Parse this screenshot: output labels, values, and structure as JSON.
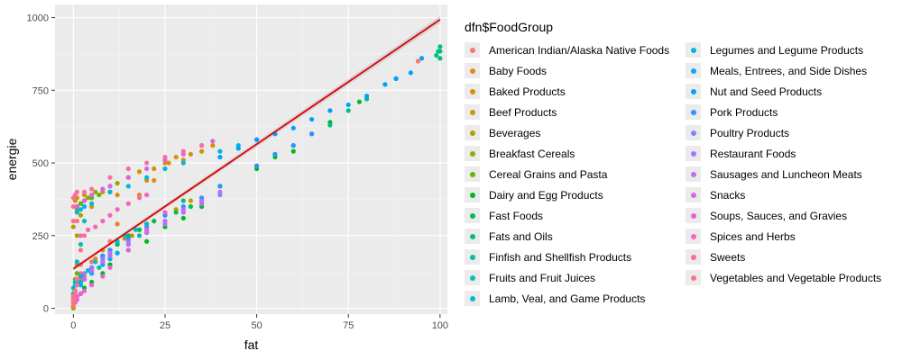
{
  "chart_data": {
    "type": "scatter",
    "xlabel": "fat",
    "ylabel": "energie",
    "xlim": [
      -5,
      102
    ],
    "ylim": [
      -20,
      1045
    ],
    "x_ticks": [
      0,
      25,
      50,
      75,
      100
    ],
    "y_ticks": [
      0,
      250,
      500,
      750,
      1000
    ],
    "x_tick_labels": [
      "0",
      "25",
      "50",
      "75",
      "100"
    ],
    "y_tick_labels": [
      "0",
      "250",
      "500",
      "750",
      "1000"
    ],
    "grid": true,
    "legend": {
      "title": "dfn$FoodGroup",
      "placement": "right"
    },
    "series": [
      {
        "name": "American Indian/Alaska Native Foods",
        "color": "#f8766d",
        "points": [
          [
            0.5,
            30
          ],
          [
            2,
            120
          ],
          [
            5,
            160
          ],
          [
            10,
            230
          ],
          [
            88,
            790
          ],
          [
            94,
            850
          ]
        ]
      },
      {
        "name": "Baby Foods",
        "color": "#e7861b",
        "points": [
          [
            0.5,
            60
          ],
          [
            1,
            80
          ],
          [
            2,
            95
          ],
          [
            3,
            110
          ],
          [
            4,
            130
          ],
          [
            6,
            170
          ],
          [
            8,
            200
          ],
          [
            12,
            290
          ],
          [
            18,
            390
          ],
          [
            22,
            440
          ],
          [
            26,
            500
          ]
        ]
      },
      {
        "name": "Baked Products",
        "color": "#d89000",
        "points": [
          [
            0.5,
            370
          ],
          [
            1,
            380
          ],
          [
            3,
            390
          ],
          [
            5,
            350
          ],
          [
            8,
            400
          ],
          [
            10,
            420
          ],
          [
            12,
            390
          ],
          [
            15,
            450
          ],
          [
            18,
            470
          ],
          [
            20,
            440
          ],
          [
            22,
            480
          ],
          [
            25,
            500
          ],
          [
            28,
            520
          ],
          [
            30,
            510
          ],
          [
            32,
            530
          ],
          [
            35,
            540
          ],
          [
            38,
            560
          ]
        ]
      },
      {
        "name": "Beef Products",
        "color": "#c49a00",
        "points": [
          [
            2,
            110
          ],
          [
            4,
            130
          ],
          [
            6,
            160
          ],
          [
            8,
            180
          ],
          [
            10,
            200
          ],
          [
            12,
            220
          ],
          [
            14,
            240
          ],
          [
            16,
            250
          ],
          [
            18,
            270
          ],
          [
            20,
            290
          ],
          [
            22,
            300
          ],
          [
            25,
            320
          ],
          [
            28,
            340
          ],
          [
            32,
            370
          ]
        ]
      },
      {
        "name": "Beverages",
        "color": "#aca300",
        "points": [
          [
            0,
            0
          ],
          [
            0,
            5
          ],
          [
            0,
            20
          ],
          [
            0,
            40
          ],
          [
            0.5,
            60
          ],
          [
            0.5,
            90
          ],
          [
            1,
            150
          ],
          [
            0,
            280
          ],
          [
            2,
            320
          ],
          [
            5,
            380
          ],
          [
            1,
            250
          ]
        ]
      },
      {
        "name": "Breakfast Cereals",
        "color": "#8fab00",
        "points": [
          [
            1,
            350
          ],
          [
            2,
            360
          ],
          [
            3,
            370
          ],
          [
            4,
            380
          ],
          [
            5,
            390
          ],
          [
            6,
            400
          ],
          [
            8,
            410
          ],
          [
            10,
            420
          ],
          [
            12,
            430
          ],
          [
            15,
            450
          ]
        ]
      },
      {
        "name": "Cereal Grains and Pasta",
        "color": "#68b300",
        "points": [
          [
            0.5,
            100
          ],
          [
            1,
            120
          ],
          [
            1,
            340
          ],
          [
            2,
            360
          ],
          [
            3,
            370
          ],
          [
            5,
            380
          ],
          [
            7,
            390
          ],
          [
            10,
            400
          ]
        ]
      },
      {
        "name": "Dairy and Egg Products",
        "color": "#00b81f",
        "points": [
          [
            0.5,
            30
          ],
          [
            2,
            50
          ],
          [
            3,
            70
          ],
          [
            5,
            90
          ],
          [
            8,
            120
          ],
          [
            10,
            150
          ],
          [
            15,
            200
          ],
          [
            20,
            230
          ],
          [
            25,
            280
          ],
          [
            30,
            310
          ],
          [
            35,
            350
          ],
          [
            50,
            480
          ],
          [
            55,
            520
          ],
          [
            60,
            540
          ],
          [
            70,
            640
          ],
          [
            78,
            710
          ]
        ]
      },
      {
        "name": "Fast Foods",
        "color": "#00bc55",
        "points": [
          [
            5,
            140
          ],
          [
            8,
            180
          ],
          [
            10,
            200
          ],
          [
            12,
            220
          ],
          [
            15,
            250
          ],
          [
            18,
            270
          ],
          [
            20,
            290
          ],
          [
            22,
            300
          ],
          [
            25,
            320
          ],
          [
            28,
            330
          ],
          [
            30,
            340
          ],
          [
            32,
            350
          ],
          [
            35,
            370
          ]
        ]
      },
      {
        "name": "Fats and Oils",
        "color": "#00c080",
        "points": [
          [
            30,
            370
          ],
          [
            40,
            420
          ],
          [
            50,
            490
          ],
          [
            55,
            530
          ],
          [
            60,
            560
          ],
          [
            65,
            600
          ],
          [
            70,
            630
          ],
          [
            75,
            680
          ],
          [
            80,
            720
          ],
          [
            99,
            870
          ],
          [
            99.5,
            884
          ],
          [
            100,
            900
          ],
          [
            100,
            884
          ],
          [
            100,
            860
          ]
        ]
      },
      {
        "name": "Finfish and Shellfish Products",
        "color": "#00c0a0",
        "points": [
          [
            0.5,
            60
          ],
          [
            1,
            80
          ],
          [
            2,
            90
          ],
          [
            3,
            100
          ],
          [
            5,
            120
          ],
          [
            7,
            140
          ],
          [
            10,
            170
          ],
          [
            12,
            190
          ],
          [
            15,
            220
          ],
          [
            18,
            250
          ],
          [
            20,
            270
          ]
        ]
      },
      {
        "name": "Fruits and Fruit Juices",
        "color": "#00bfbb",
        "points": [
          [
            0,
            20
          ],
          [
            0,
            30
          ],
          [
            0,
            50
          ],
          [
            0,
            70
          ],
          [
            0.5,
            40
          ],
          [
            0.5,
            90
          ],
          [
            1,
            100
          ],
          [
            1,
            160
          ],
          [
            2,
            220
          ],
          [
            3,
            300
          ],
          [
            15,
            200
          ]
        ]
      },
      {
        "name": "Lamb, Veal, and Game Products",
        "color": "#00bcd2",
        "points": [
          [
            2,
            110
          ],
          [
            4,
            130
          ],
          [
            6,
            160
          ],
          [
            8,
            180
          ],
          [
            10,
            200
          ],
          [
            12,
            230
          ],
          [
            14,
            250
          ],
          [
            17,
            270
          ],
          [
            20,
            290
          ],
          [
            25,
            320
          ]
        ]
      },
      {
        "name": "Legumes and Legume Products",
        "color": "#00b5e5",
        "points": [
          [
            0.5,
            80
          ],
          [
            1,
            90
          ],
          [
            1,
            330
          ],
          [
            2,
            340
          ],
          [
            3,
            350
          ],
          [
            5,
            360
          ],
          [
            10,
            400
          ],
          [
            15,
            420
          ],
          [
            20,
            450
          ],
          [
            25,
            480
          ],
          [
            30,
            500
          ],
          [
            40,
            540
          ],
          [
            45,
            560
          ],
          [
            50,
            580
          ]
        ]
      },
      {
        "name": "Meals, Entrees, and Side Dishes",
        "color": "#00acf5",
        "points": [
          [
            2,
            80
          ],
          [
            3,
            100
          ],
          [
            5,
            120
          ],
          [
            8,
            150
          ],
          [
            10,
            170
          ],
          [
            12,
            190
          ],
          [
            15,
            220
          ]
        ]
      },
      {
        "name": "Nut and Seed Products",
        "color": "#00a0ff",
        "points": [
          [
            40,
            520
          ],
          [
            45,
            550
          ],
          [
            50,
            580
          ],
          [
            55,
            600
          ],
          [
            60,
            620
          ],
          [
            65,
            650
          ],
          [
            70,
            680
          ],
          [
            75,
            700
          ],
          [
            80,
            730
          ],
          [
            85,
            770
          ],
          [
            88,
            790
          ],
          [
            92,
            810
          ],
          [
            95,
            860
          ]
        ]
      },
      {
        "name": "Pork Products",
        "color": "#2c92ff",
        "points": [
          [
            2,
            110
          ],
          [
            5,
            140
          ],
          [
            8,
            180
          ],
          [
            10,
            200
          ],
          [
            15,
            240
          ],
          [
            20,
            280
          ],
          [
            25,
            320
          ],
          [
            30,
            350
          ],
          [
            35,
            380
          ],
          [
            40,
            420
          ],
          [
            50,
            490
          ],
          [
            55,
            530
          ],
          [
            60,
            560
          ],
          [
            65,
            600
          ]
        ]
      },
      {
        "name": "Poultry Products",
        "color": "#7f83ff",
        "points": [
          [
            1,
            100
          ],
          [
            3,
            120
          ],
          [
            5,
            140
          ],
          [
            8,
            170
          ],
          [
            10,
            190
          ],
          [
            15,
            230
          ],
          [
            20,
            270
          ],
          [
            25,
            300
          ],
          [
            30,
            330
          ],
          [
            35,
            360
          ],
          [
            40,
            390
          ]
        ]
      },
      {
        "name": "Restaurant Foods",
        "color": "#a676ff",
        "points": [
          [
            3,
            100
          ],
          [
            5,
            130
          ],
          [
            8,
            160
          ],
          [
            10,
            180
          ],
          [
            15,
            220
          ],
          [
            20,
            260
          ],
          [
            25,
            290
          ],
          [
            30,
            330
          ],
          [
            35,
            360
          ]
        ]
      },
      {
        "name": "Sausages and Luncheon Meats",
        "color": "#c46bf4",
        "points": [
          [
            3,
            100
          ],
          [
            5,
            130
          ],
          [
            8,
            160
          ],
          [
            10,
            190
          ],
          [
            15,
            220
          ],
          [
            20,
            260
          ],
          [
            25,
            300
          ],
          [
            30,
            340
          ],
          [
            35,
            370
          ],
          [
            40,
            400
          ]
        ]
      },
      {
        "name": "Snacks",
        "color": "#d964ec",
        "points": [
          [
            1,
            350
          ],
          [
            3,
            370
          ],
          [
            5,
            390
          ],
          [
            8,
            410
          ],
          [
            10,
            420
          ],
          [
            15,
            450
          ],
          [
            20,
            480
          ],
          [
            25,
            510
          ],
          [
            30,
            530
          ],
          [
            35,
            560
          ],
          [
            38,
            575
          ]
        ]
      },
      {
        "name": "Soups, Sauces, and Gravies",
        "color": "#ea5fd5",
        "points": [
          [
            0,
            10
          ],
          [
            0.5,
            20
          ],
          [
            1,
            30
          ],
          [
            1,
            40
          ],
          [
            2,
            50
          ],
          [
            3,
            60
          ],
          [
            5,
            80
          ],
          [
            8,
            110
          ],
          [
            10,
            140
          ],
          [
            15,
            200
          ],
          [
            20,
            270
          ],
          [
            25,
            330
          ]
        ]
      },
      {
        "name": "Spices and Herbs",
        "color": "#f564bd",
        "points": [
          [
            2,
            250
          ],
          [
            4,
            270
          ],
          [
            6,
            280
          ],
          [
            8,
            300
          ],
          [
            10,
            320
          ],
          [
            12,
            340
          ],
          [
            15,
            360
          ],
          [
            18,
            380
          ],
          [
            20,
            390
          ]
        ]
      },
      {
        "name": "Sweets",
        "color": "#fc6ca2",
        "points": [
          [
            0,
            300
          ],
          [
            0,
            350
          ],
          [
            0,
            380
          ],
          [
            0.5,
            390
          ],
          [
            1,
            400
          ],
          [
            3,
            400
          ],
          [
            5,
            410
          ],
          [
            10,
            450
          ],
          [
            15,
            480
          ],
          [
            20,
            500
          ],
          [
            25,
            520
          ],
          [
            30,
            540
          ],
          [
            35,
            560
          ]
        ]
      },
      {
        "name": "Vegetables and Vegetable Products",
        "color": "#fd7287",
        "points": [
          [
            0,
            10
          ],
          [
            0,
            20
          ],
          [
            0,
            30
          ],
          [
            0,
            40
          ],
          [
            0.5,
            50
          ],
          [
            0.5,
            60
          ],
          [
            1,
            80
          ],
          [
            1,
            100
          ],
          [
            2,
            150
          ],
          [
            2,
            200
          ],
          [
            3,
            250
          ],
          [
            1,
            300
          ]
        ]
      }
    ],
    "fit_line": {
      "x": [
        0,
        100
      ],
      "y": [
        136,
        993
      ],
      "color": "#e00000",
      "band_color": "#cfcfcf"
    }
  }
}
